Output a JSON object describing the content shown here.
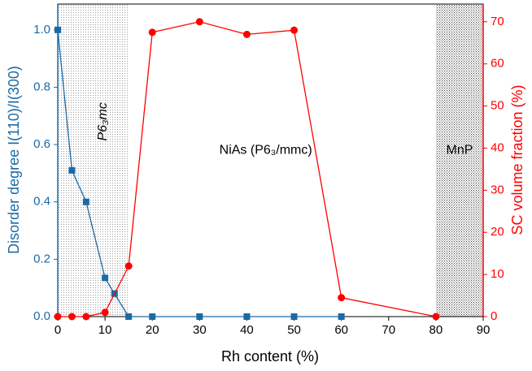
{
  "chart_data": {
    "type": "line",
    "xlabel": "Rh content (%)",
    "ylabel": "Disorder degree I(110)/I(300)",
    "y2label": "SC volume fraction (%)",
    "xlim": [
      0,
      90
    ],
    "xticks": [
      0,
      10,
      20,
      30,
      40,
      50,
      60,
      70,
      80,
      90
    ],
    "ylim": [
      0,
      1.09
    ],
    "yticks": [
      {
        "value": 0,
        "label": "0.0"
      },
      {
        "value": 0.2,
        "label": "0.2"
      },
      {
        "value": 0.4,
        "label": "0.4"
      },
      {
        "value": 0.6,
        "label": "0.6"
      },
      {
        "value": 0.8,
        "label": "0.8"
      },
      {
        "value": 1,
        "label": "1.0"
      }
    ],
    "y2lim": [
      0,
      74.2
    ],
    "y2ticks": [
      0,
      10,
      20,
      30,
      40,
      50,
      60,
      70
    ],
    "regions": [
      {
        "xlim": [
          0,
          15
        ],
        "label": "P6₃mc",
        "color": "#999999"
      },
      {
        "xlim": [
          80,
          90
        ],
        "label": "MnP",
        "color": "#555555"
      }
    ],
    "annotations": [
      {
        "text": "NiAs (P6₃/mmc)",
        "x": 44,
        "y": 0.58
      }
    ],
    "series": [
      {
        "name": "Disorder degree",
        "color": "#1a6aa6",
        "marker": "square",
        "x": [
          0,
          3,
          6,
          10,
          12,
          15,
          20,
          30,
          40,
          50,
          60
        ],
        "values": [
          1.0,
          0.51,
          0.4,
          0.135,
          0.08,
          0,
          0,
          0,
          0,
          0,
          0
        ]
      },
      {
        "name": "SC volume fraction",
        "color": "#ff0000",
        "marker": "circle",
        "axis": "y2",
        "x": [
          0,
          3,
          6,
          10,
          15,
          20,
          30,
          40,
          50,
          60,
          80
        ],
        "values": [
          0,
          0,
          0,
          1,
          12,
          67.5,
          70,
          67,
          68,
          4.5,
          0
        ]
      }
    ]
  }
}
